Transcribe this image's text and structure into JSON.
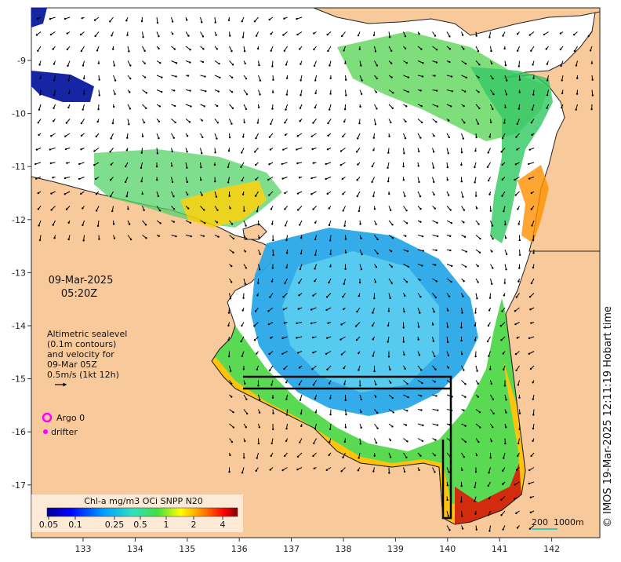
{
  "map": {
    "date": "09-Mar-2025",
    "time": "05:20Z",
    "altimetry_lines": [
      "Altimetric sealevel",
      "(0.1m contours)",
      "and velocity for",
      "09-Mar 05Z",
      "0.5m/s (1kt 12h)"
    ],
    "legend": {
      "argo_label": "Argo 0",
      "drifter_label": "drifter",
      "argo_color": "#ff00ff",
      "drifter_color": "#ff00ff"
    },
    "colorbar": {
      "title": "Chl-a mg/m3 OCi SNPP N20",
      "ticks": [
        "0.05",
        "0.1",
        "0.25",
        "0.5",
        "1",
        "2",
        "4"
      ]
    },
    "scale_bar": {
      "left": "200",
      "right": "1000m"
    },
    "credit": "© IMOS 19-Mar-2025 12:11:19 Hobart time",
    "longitudes": [
      "133",
      "134",
      "135",
      "136",
      "137",
      "138",
      "139",
      "140",
      "141",
      "142"
    ],
    "latitudes": [
      "-9",
      "-10",
      "-11",
      "-12",
      "-13",
      "-14",
      "-15",
      "-16",
      "-17"
    ],
    "colors": {
      "land": "#f8c99a",
      "ocean_nodata": "#ffffff",
      "coast": "#222222"
    }
  }
}
